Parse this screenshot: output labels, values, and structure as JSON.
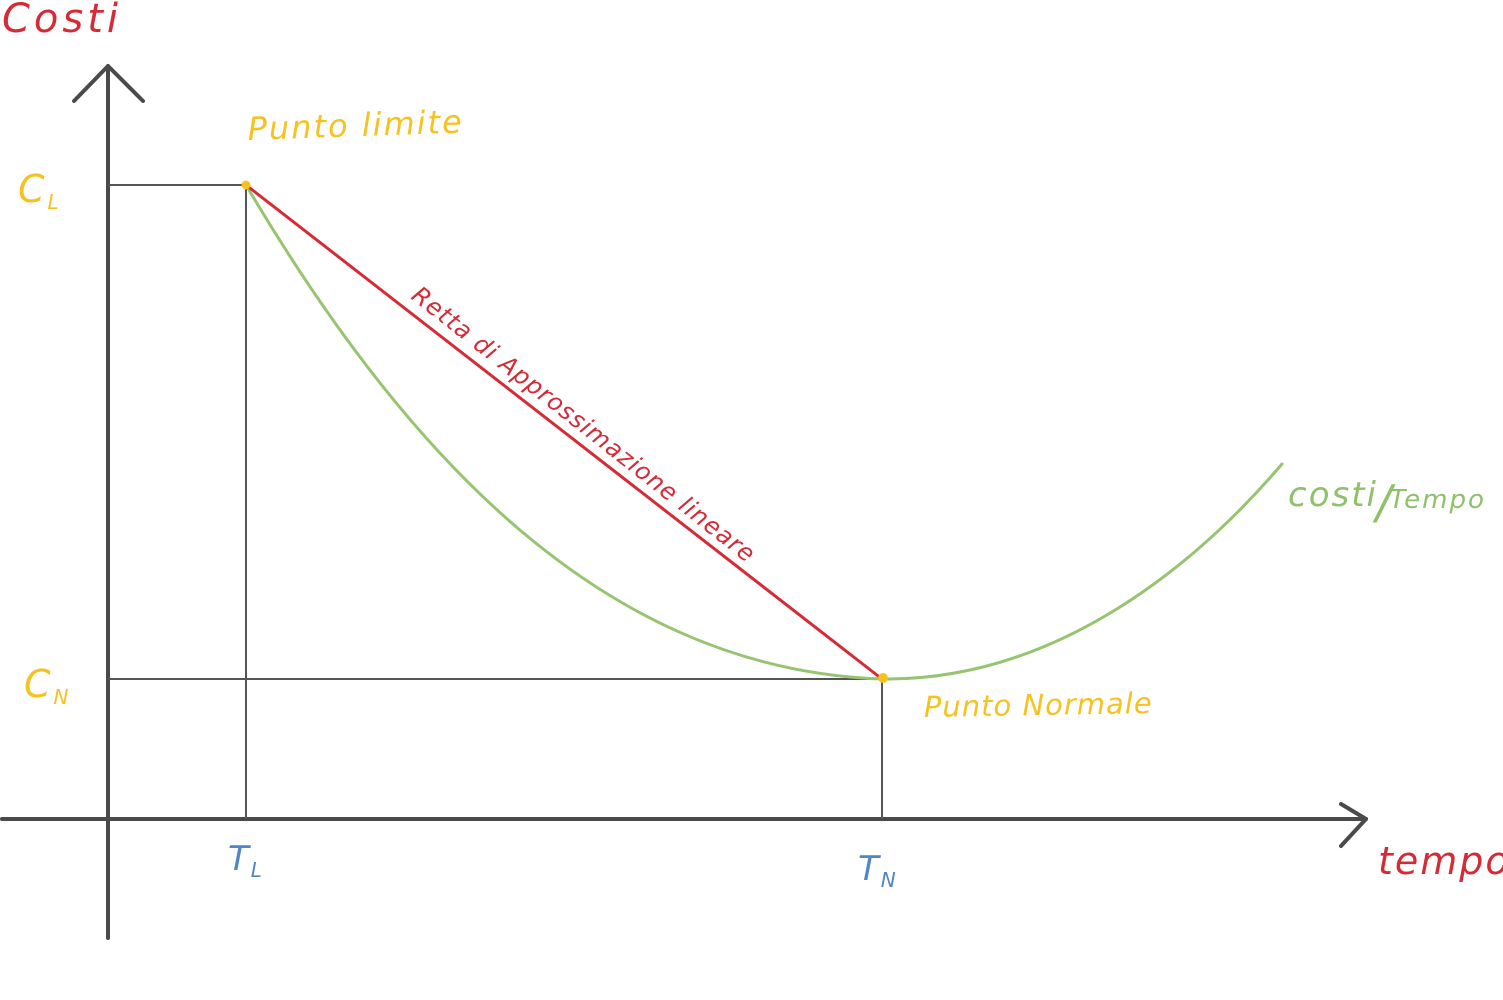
{
  "colors": {
    "axis": "#4a4a4a",
    "guide": "#555555",
    "curve": "#97c470",
    "line": "#d42b36",
    "point": "#f6c21f",
    "y_label": "#d42b36",
    "x_label": "#d42b36",
    "cost_ticks": "#f6c21f",
    "time_ticks": "#4f86c6",
    "curve_label": "#8fc06a"
  },
  "axes": {
    "y_label": "Costi",
    "x_label": "tempo"
  },
  "ticks": {
    "cost_limit_main": "C",
    "cost_limit_sub": "L",
    "cost_normal_main": "C",
    "cost_normal_sub": "N",
    "time_limit_main": "T",
    "time_limit_sub": "L",
    "time_normal_main": "T",
    "time_normal_sub": "N"
  },
  "points": {
    "limit_label": "Punto limite",
    "normal_label": "Punto Normale"
  },
  "line": {
    "label": "Retta di Approssimazione lineare"
  },
  "curve": {
    "label_main": "costi",
    "label_slash": "/",
    "label_sub": "Tempo"
  }
}
